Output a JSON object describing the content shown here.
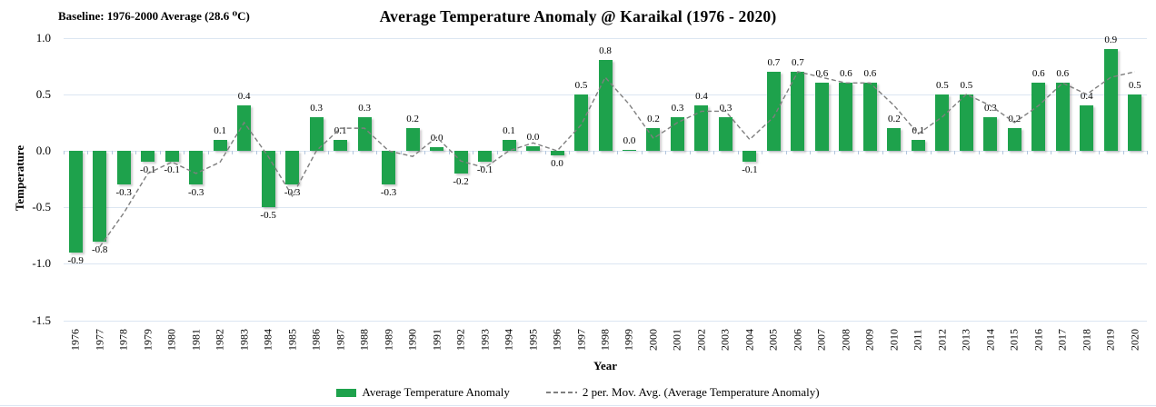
{
  "chart_data": {
    "type": "bar",
    "title": "Average Temperature Anomaly @ Karaikal (1976 - 2020)",
    "baseline_note": "Baseline: 1976-2000 Average (28.6 ⁰C)",
    "xlabel": "Year",
    "ylabel": "Temperature",
    "ylim": [
      -1.5,
      1.0
    ],
    "yticks": [
      "1.0",
      "0.5",
      "0.0",
      "-0.5",
      "-1.0",
      "-1.5"
    ],
    "grid": true,
    "legend_position": "bottom",
    "colors": {
      "bar": "#1ea24c",
      "moving_average_line": "#7f7f7f",
      "gridline": "#dce6f2"
    },
    "categories": [
      "1976",
      "1977",
      "1978",
      "1979",
      "1980",
      "1981",
      "1982",
      "1983",
      "1984",
      "1985",
      "1986",
      "1987",
      "1988",
      "1989",
      "1990",
      "1991",
      "1992",
      "1993",
      "1994",
      "1995",
      "1996",
      "1997",
      "1998",
      "1999",
      "2000",
      "2001",
      "2002",
      "2003",
      "2004",
      "2005",
      "2006",
      "2007",
      "2008",
      "2009",
      "2010",
      "2011",
      "2012",
      "2013",
      "2014",
      "2015",
      "2016",
      "2017",
      "2018",
      "2019",
      "2020"
    ],
    "series": [
      {
        "name": "Average Temperature Anomaly",
        "type": "bar",
        "color": "#1ea24c",
        "values": [
          -0.9,
          -0.8,
          -0.3,
          -0.1,
          -0.1,
          -0.3,
          0.1,
          0.4,
          -0.5,
          -0.3,
          0.3,
          0.1,
          0.3,
          -0.3,
          0.2,
          0.03,
          -0.2,
          -0.1,
          0.1,
          0.04,
          -0.04,
          0.5,
          0.8,
          0.01,
          0.2,
          0.3,
          0.4,
          0.3,
          -0.1,
          0.7,
          0.7,
          0.6,
          0.6,
          0.6,
          0.2,
          0.1,
          0.5,
          0.5,
          0.3,
          0.2,
          0.6,
          0.6,
          0.4,
          0.9,
          0.5
        ],
        "labels": [
          "-0.9",
          "-0.8",
          "-0.3",
          "-0.1",
          "-0.1",
          "-0.3",
          "0.1",
          "0.4",
          "-0.5",
          "-0.3",
          "0.3",
          "0.1",
          "0.3",
          "-0.3",
          "0.2",
          "0.0",
          "-0.2",
          "-0.1",
          "0.1",
          "0.0",
          "0.0",
          "0.5",
          "0.8",
          "0.0",
          "0.2",
          "0.3",
          "0.4",
          "0.3",
          "-0.1",
          "0.7",
          "0.7",
          "0.6",
          "0.6",
          "0.6",
          "0.2",
          "0.1",
          "0.5",
          "0.5",
          "0.3",
          "0.2",
          "0.6",
          "0.6",
          "0.4",
          "0.9",
          "0.5"
        ]
      },
      {
        "name": "2 per. Mov. Avg. (Average Temperature Anomaly)",
        "type": "line",
        "style": "dashed",
        "color": "#7f7f7f",
        "values": [
          null,
          -0.85,
          -0.55,
          -0.2,
          -0.1,
          -0.2,
          -0.1,
          0.25,
          -0.05,
          -0.4,
          0.0,
          0.2,
          0.2,
          0.0,
          -0.05,
          0.12,
          -0.09,
          -0.15,
          0.0,
          0.07,
          0.0,
          0.23,
          0.65,
          0.41,
          0.11,
          0.25,
          0.35,
          0.35,
          0.1,
          0.3,
          0.7,
          0.65,
          0.6,
          0.6,
          0.4,
          0.15,
          0.3,
          0.5,
          0.4,
          0.25,
          0.4,
          0.6,
          0.5,
          0.65,
          0.7
        ]
      }
    ]
  }
}
